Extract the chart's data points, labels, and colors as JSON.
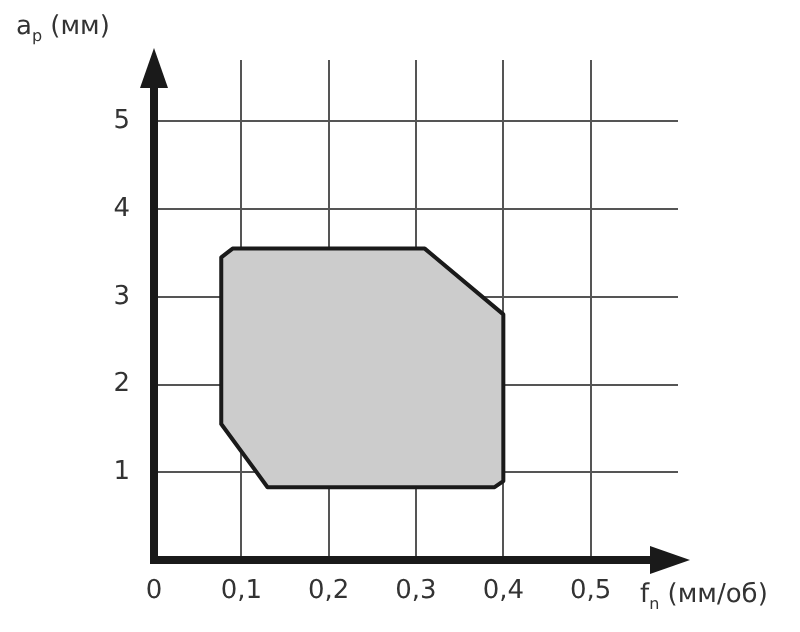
{
  "chart_data": {
    "type": "area",
    "xlabel": "f$_{n}$ (мм/об)",
    "ylabel": "a$_{p}$ (мм)",
    "x": [
      0.077,
      0.077,
      0.09,
      0.31,
      0.4,
      0.4,
      0.39,
      0.13,
      0.077
    ],
    "values": [
      1.55,
      3.45,
      3.55,
      3.55,
      2.8,
      0.9,
      0.83,
      0.83,
      1.55
    ],
    "color": "#cccccc",
    "xlim": [
      0,
      0.6
    ],
    "ylim": [
      0,
      5.7
    ],
    "xticks": [
      0,
      {
        "value": 0.1,
        "label": "0,1"
      },
      {
        "value": 0.2,
        "label": "0,2"
      },
      {
        "value": 0.3,
        "label": "0,3"
      },
      {
        "value": 0.4,
        "label": "0,4"
      },
      {
        "value": 0.5,
        "label": "0,5"
      }
    ],
    "yticks": [
      1,
      2,
      3,
      4,
      5
    ],
    "grid": true,
    "legend": false
  }
}
